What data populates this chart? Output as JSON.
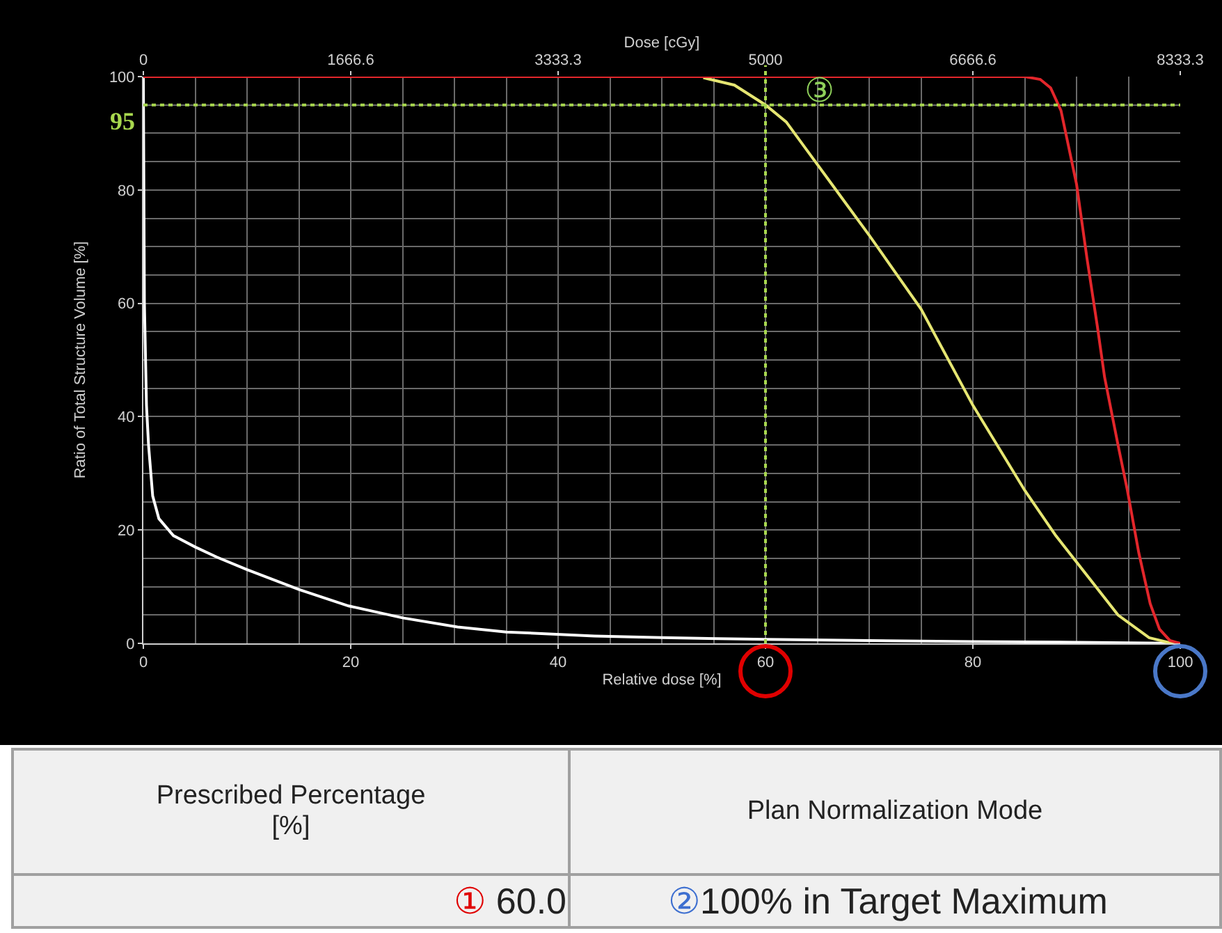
{
  "chart_data": {
    "type": "line",
    "xlabel": "Relative dose [%]",
    "x2label": "Dose [cGy]",
    "ylabel": "Ratio of Total Structure Volume [%]",
    "xlim": [
      0,
      100
    ],
    "xticks": [
      0,
      20,
      40,
      60,
      80,
      100
    ],
    "x2lim": [
      0,
      8333.3
    ],
    "x2ticks": [
      0,
      1666.6,
      3333.3,
      5000,
      6666.6,
      8333.3
    ],
    "ylim": [
      0,
      100
    ],
    "yticks": [
      0,
      20,
      40,
      60,
      80,
      100
    ],
    "grid": true,
    "marker": "none",
    "line_style": "solid",
    "series": [
      {
        "color": "#ffffff",
        "x": [
          0,
          0.1,
          0.3,
          0.5,
          0.9,
          1.5,
          2.9,
          5,
          7.1,
          10,
          15,
          19.8,
          25,
          30.3,
          35,
          43.5,
          50,
          60,
          70,
          80,
          90,
          100
        ],
        "values": [
          100,
          60,
          42,
          35,
          26,
          22,
          19,
          17,
          15.2,
          13,
          9.5,
          6.6,
          4.5,
          2.9,
          2,
          1.3,
          1,
          0.7,
          0.5,
          0.3,
          0.2,
          0
        ]
      },
      {
        "color": "#e6e672",
        "x": [
          54,
          57,
          60,
          62,
          64,
          66,
          68,
          70,
          75,
          80,
          85,
          88,
          91,
          94,
          97,
          99,
          100
        ],
        "values": [
          99.8,
          98.5,
          95,
          92,
          87,
          82,
          77,
          72,
          59,
          42,
          27,
          19,
          12,
          5,
          1,
          0.1,
          0
        ]
      },
      {
        "color": "#e3262b",
        "x": [
          0,
          85,
          86.5,
          87.5,
          88.5,
          90,
          91,
          92,
          92.7,
          94,
          94.9,
          96,
          97.1,
          98,
          99,
          100
        ],
        "values": [
          100,
          100,
          99.5,
          98,
          94,
          81,
          68,
          56,
          47,
          35,
          27,
          16,
          7,
          2.5,
          0.5,
          0
        ]
      }
    ],
    "ref_lines": [
      {
        "axis": "y",
        "value": 95,
        "label": "95",
        "color": "#a8d84e",
        "line_style": "dotted"
      },
      {
        "axis": "x",
        "value": 60,
        "color": "#a8d84e",
        "line_style": "dotted"
      }
    ],
    "annotations": [
      {
        "text": "③",
        "x": 60,
        "y": 95
      },
      "Prescribed Percentage\n[%]",
      "Plan Normalization Mode",
      "① 60.0",
      "②100% in Target Maximum"
    ]
  }
}
